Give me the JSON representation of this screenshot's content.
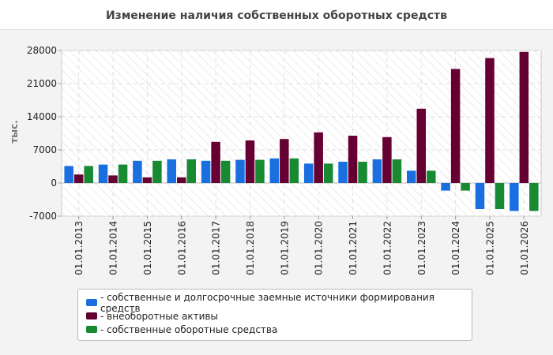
{
  "title": "Изменение наличия собственных оборотных средств",
  "chart_data": {
    "type": "bar",
    "title": "Изменение наличия собственных оборотных средств",
    "ylabel": "тыс.",
    "xlabel": "",
    "ylim": [
      -7000,
      28000
    ],
    "yticks": [
      -7000,
      0,
      7000,
      14000,
      21000,
      28000
    ],
    "grid": true,
    "legend_position": "bottom",
    "categories": [
      "01.01.2013",
      "01.01.2014",
      "01.01.2015",
      "01.01.2016",
      "01.01.2017",
      "01.01.2018",
      "01.01.2019",
      "01.01.2020",
      "01.01.2021",
      "01.01.2022",
      "01.01.2023",
      "01.01.2024",
      "01.01.2025",
      "01.01.2026"
    ],
    "series": [
      {
        "name": "- собственные и долгосрочные заемные источники формирования средств",
        "color": "#1a6fe0",
        "values": [
          3600,
          3900,
          4700,
          5000,
          4700,
          4900,
          5200,
          4100,
          4500,
          5000,
          2600,
          -1600,
          -5500,
          -5900
        ]
      },
      {
        "name": "- внеоборотные активы",
        "color": "#660033",
        "values": [
          1800,
          1600,
          1200,
          1200,
          8700,
          9000,
          9300,
          10700,
          10000,
          9700,
          15700,
          24100,
          26400,
          27700
        ]
      },
      {
        "name": "- собственные оборотные средства",
        "color": "#178a32",
        "values": [
          3600,
          3900,
          4700,
          5000,
          4700,
          4900,
          5200,
          4100,
          4500,
          5000,
          2600,
          -1600,
          -5500,
          -5900
        ]
      }
    ]
  }
}
